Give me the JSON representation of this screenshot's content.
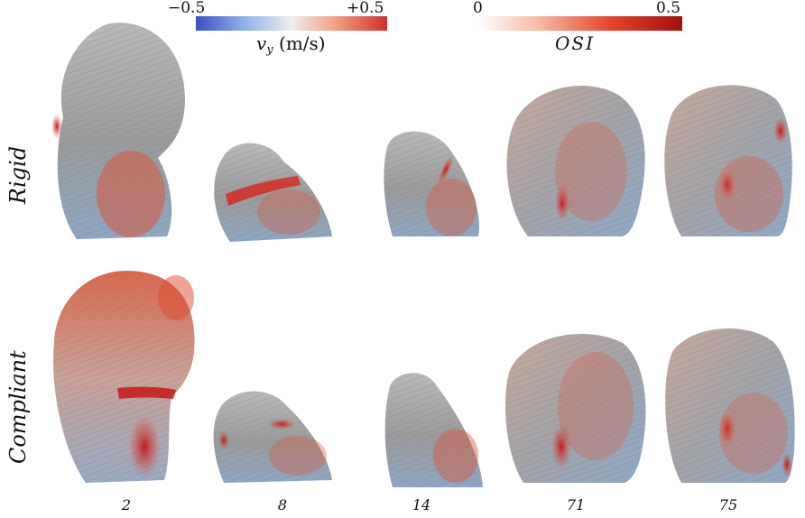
{
  "colorbars": {
    "vy": {
      "min_label": "−0.5",
      "max_label": "+0.5",
      "symbol": "v",
      "subscript": "y",
      "unit": "(m/s)",
      "colors": [
        "#3a4fc4",
        "#eeeeee",
        "#d0302b"
      ]
    },
    "osi": {
      "min_label": "0",
      "max_label": "0.5",
      "title": "OSI",
      "colors": [
        "#ffffff",
        "#e2442d",
        "#a30f0f"
      ]
    }
  },
  "rows": [
    {
      "label": "Rigid"
    },
    {
      "label": "Compliant"
    }
  ],
  "columns": [
    {
      "case": "2"
    },
    {
      "case": "8"
    },
    {
      "case": "14"
    },
    {
      "case": "71"
    },
    {
      "case": "75"
    }
  ]
}
